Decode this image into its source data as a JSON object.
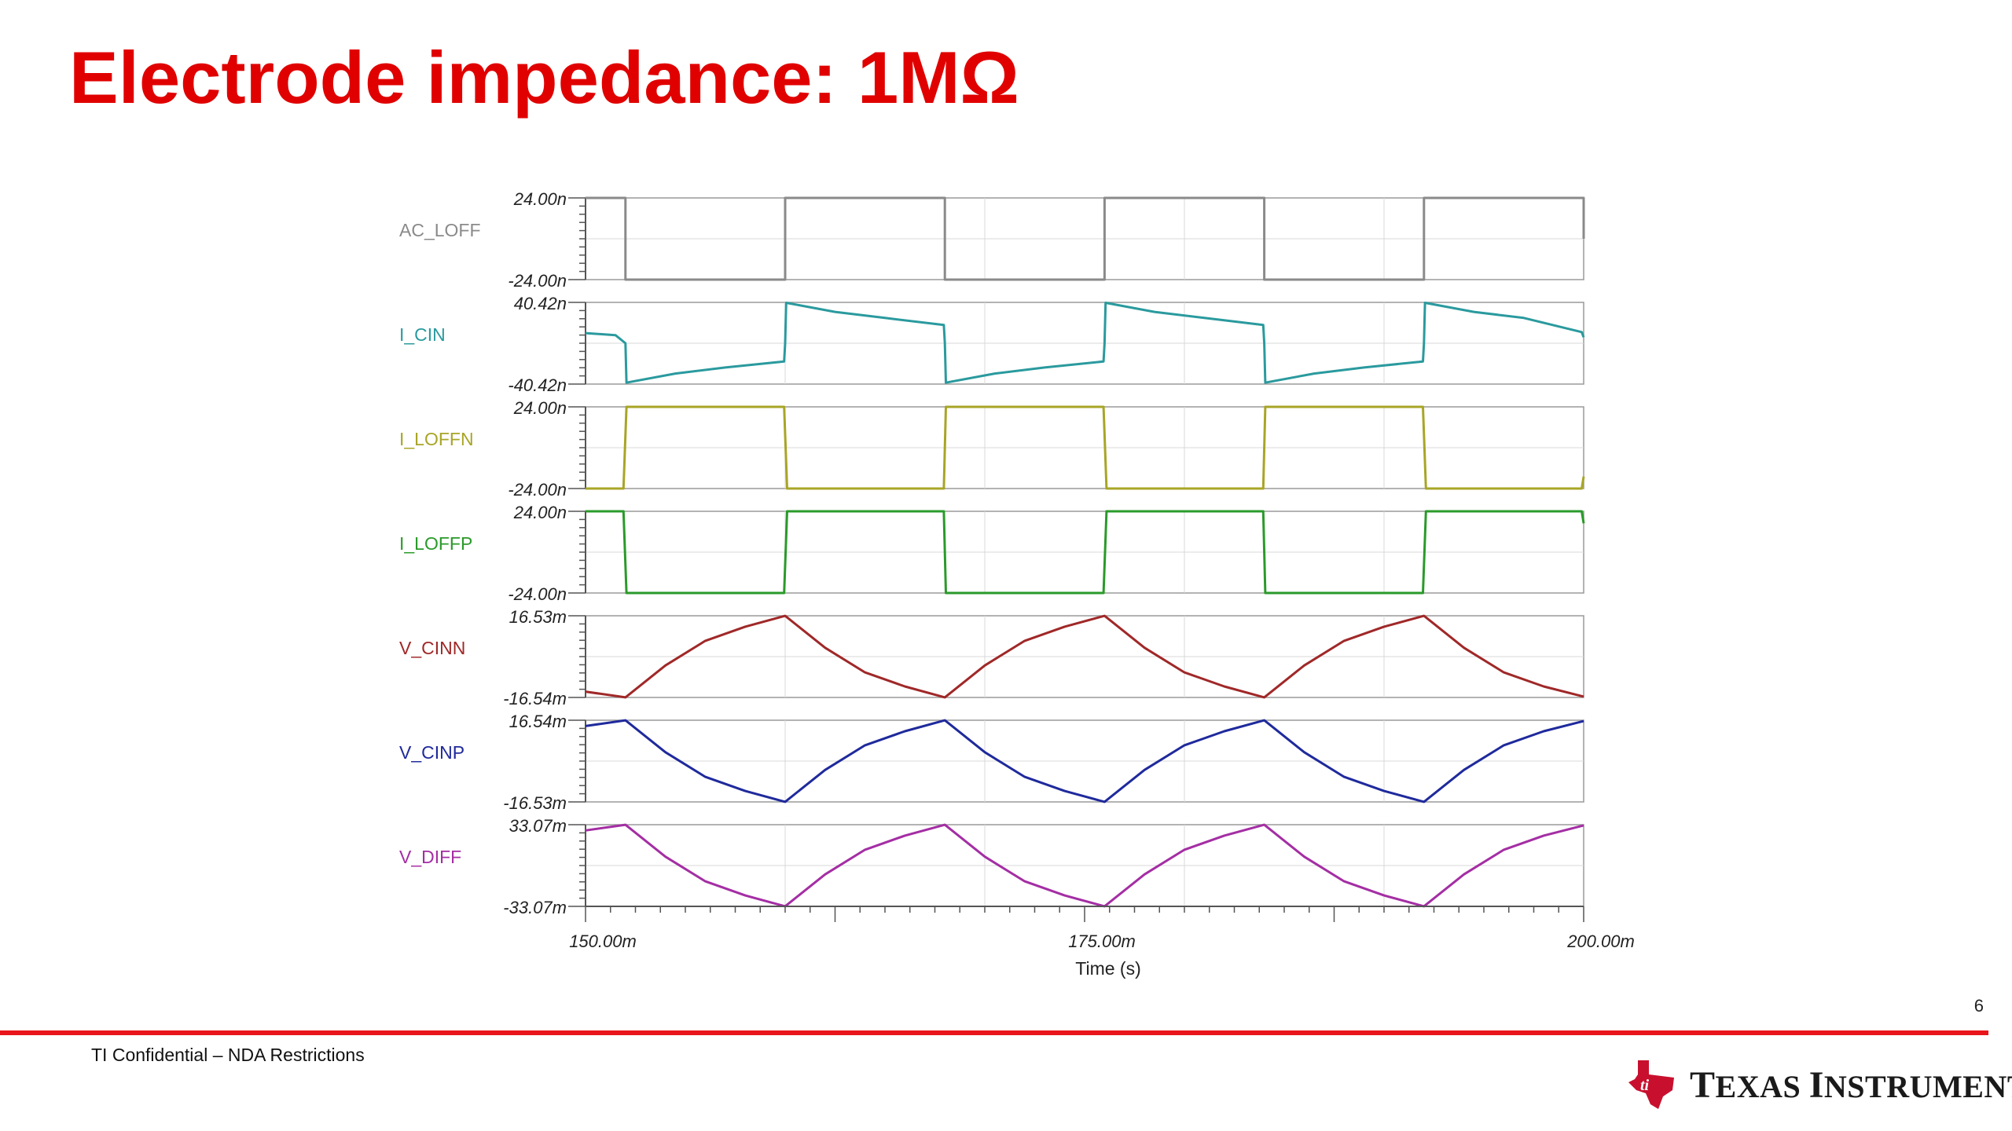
{
  "slide": {
    "title": "Electrode impedance: 1MΩ",
    "page_number": "6",
    "confidential": "TI Confidential – NDA Restrictions",
    "logo_text": "Texas Instruments"
  },
  "colors": {
    "title": "#e00000",
    "footer_rule": "#e8161b",
    "logo_red": "#c8102e",
    "plot_border": "#9a9a9a",
    "grid": "#d8d8d8"
  },
  "chart_data": {
    "type": "line",
    "title": "",
    "xlabel": "Time (s)",
    "xlim": [
      0.15,
      0.2
    ],
    "xtick_labels": [
      "150.00m",
      "175.00m",
      "200.00m"
    ],
    "xtick_values": [
      0.15,
      0.175,
      0.2
    ],
    "grid": true,
    "legend": "left of each trace",
    "series": [
      {
        "name": "AC_LOFF",
        "color": "#8a8a8a",
        "ylim": [
          -2.4e-08,
          2.4e-08
        ],
        "ytick_labels": [
          "24.00n",
          "-24.00n"
        ],
        "x": [
          0.15,
          0.152,
          0.152,
          0.16,
          0.16,
          0.168,
          0.168,
          0.176,
          0.176,
          0.184,
          0.184,
          0.192,
          0.192,
          0.2,
          0.2
        ],
        "y": [
          2.4e-08,
          2.4e-08,
          -2.4e-08,
          -2.4e-08,
          2.4e-08,
          2.4e-08,
          -2.4e-08,
          -2.4e-08,
          2.4e-08,
          2.4e-08,
          -2.4e-08,
          -2.4e-08,
          2.4e-08,
          2.4e-08,
          0
        ]
      },
      {
        "name": "I_CIN",
        "color": "#2a9a9e",
        "ylim": [
          -4.042e-08,
          4.042e-08
        ],
        "ytick_labels": [
          "40.42n",
          "-40.42n"
        ],
        "x": [
          0.15,
          0.1515,
          0.152,
          0.15205,
          0.1545,
          0.157,
          0.15995,
          0.16,
          0.16005,
          0.1625,
          0.165,
          0.16795,
          0.168,
          0.16805,
          0.1705,
          0.173,
          0.17595,
          0.176,
          0.17605,
          0.1785,
          0.181,
          0.18395,
          0.184,
          0.18405,
          0.1865,
          0.189,
          0.19195,
          0.192,
          0.19205,
          0.1945,
          0.197,
          0.1999,
          0.2
        ],
        "y": [
          1e-08,
          8e-09,
          0,
          -3.9e-08,
          -3e-08,
          -2.4e-08,
          -1.8e-08,
          0,
          4e-08,
          3.1e-08,
          2.5e-08,
          1.8e-08,
          0,
          -3.9e-08,
          -3e-08,
          -2.4e-08,
          -1.8e-08,
          0,
          4e-08,
          3.1e-08,
          2.5e-08,
          1.8e-08,
          0,
          -3.9e-08,
          -3e-08,
          -2.4e-08,
          -1.8e-08,
          0,
          4e-08,
          3.1e-08,
          2.5e-08,
          1.1e-08,
          6e-09
        ]
      },
      {
        "name": "I_LOFFN",
        "color": "#a8a526",
        "ylim": [
          -2.4e-08,
          2.4e-08
        ],
        "ytick_labels": [
          "24.00n",
          "-24.00n"
        ],
        "x": [
          0.15,
          0.1519,
          0.15205,
          0.15995,
          0.1601,
          0.16795,
          0.16805,
          0.17595,
          0.1761,
          0.18395,
          0.18405,
          0.19195,
          0.1921,
          0.1999,
          0.2
        ],
        "y": [
          -2.4e-08,
          -2.4e-08,
          2.4e-08,
          2.4e-08,
          -2.4e-08,
          -2.4e-08,
          2.4e-08,
          2.4e-08,
          -2.4e-08,
          -2.4e-08,
          2.4e-08,
          2.4e-08,
          -2.4e-08,
          -2.4e-08,
          -1.7e-08
        ]
      },
      {
        "name": "I_LOFFP",
        "color": "#2a9a2a",
        "ylim": [
          -2.4e-08,
          2.4e-08
        ],
        "ytick_labels": [
          "24.00n",
          "-24.00n"
        ],
        "x": [
          0.15,
          0.1519,
          0.15205,
          0.15995,
          0.1601,
          0.16795,
          0.16805,
          0.17595,
          0.1761,
          0.18395,
          0.18405,
          0.19195,
          0.1921,
          0.1999,
          0.2
        ],
        "y": [
          2.4e-08,
          2.4e-08,
          -2.4e-08,
          -2.4e-08,
          2.4e-08,
          2.4e-08,
          -2.4e-08,
          -2.4e-08,
          2.4e-08,
          2.4e-08,
          -2.4e-08,
          -2.4e-08,
          2.4e-08,
          2.4e-08,
          1.7e-08
        ]
      },
      {
        "name": "V_CINN",
        "color": "#a02828",
        "ylim": [
          -0.01654,
          0.01653
        ],
        "ytick_labels": [
          "16.53m",
          "-16.54m"
        ],
        "x": [
          0.15,
          0.152,
          0.154,
          0.156,
          0.158,
          0.16,
          0.162,
          0.164,
          0.166,
          0.168,
          0.17,
          0.172,
          0.174,
          0.176,
          0.178,
          0.18,
          0.182,
          0.184,
          0.186,
          0.188,
          0.19,
          0.192,
          0.194,
          0.196,
          0.198,
          0.2
        ],
        "y": [
          -0.0142,
          -0.0165,
          -0.0036,
          0.0064,
          0.0121,
          0.0165,
          0.0036,
          -0.0064,
          -0.0121,
          -0.0165,
          -0.0036,
          0.0064,
          0.0121,
          0.0165,
          0.0036,
          -0.0064,
          -0.0121,
          -0.0165,
          -0.0036,
          0.0064,
          0.0121,
          0.0165,
          0.0036,
          -0.0064,
          -0.0121,
          -0.0162
        ]
      },
      {
        "name": "V_CINP",
        "color": "#1f2a9c",
        "ylim": [
          -0.01653,
          0.01654
        ],
        "ytick_labels": [
          "16.54m",
          "-16.53m"
        ],
        "x": [
          0.15,
          0.152,
          0.154,
          0.156,
          0.158,
          0.16,
          0.162,
          0.164,
          0.166,
          0.168,
          0.17,
          0.172,
          0.174,
          0.176,
          0.178,
          0.18,
          0.182,
          0.184,
          0.186,
          0.188,
          0.19,
          0.192,
          0.194,
          0.196,
          0.198,
          0.2
        ],
        "y": [
          0.0142,
          0.0165,
          0.0036,
          -0.0064,
          -0.0121,
          -0.0165,
          -0.0036,
          0.0064,
          0.0121,
          0.0165,
          0.0036,
          -0.0064,
          -0.0121,
          -0.0165,
          -0.0036,
          0.0064,
          0.0121,
          0.0165,
          0.0036,
          -0.0064,
          -0.0121,
          -0.0165,
          -0.0036,
          0.0064,
          0.0121,
          0.0162
        ]
      },
      {
        "name": "V_DIFF",
        "color": "#a42ea4",
        "ylim": [
          -0.03307,
          0.03307
        ],
        "ytick_labels": [
          "33.07m",
          "-33.07m"
        ],
        "x": [
          0.15,
          0.152,
          0.154,
          0.156,
          0.158,
          0.16,
          0.162,
          0.164,
          0.166,
          0.168,
          0.17,
          0.172,
          0.174,
          0.176,
          0.178,
          0.18,
          0.182,
          0.184,
          0.186,
          0.188,
          0.19,
          0.192,
          0.194,
          0.196,
          0.198,
          0.2
        ],
        "y": [
          0.0284,
          0.033,
          0.0072,
          -0.0128,
          -0.0242,
          -0.033,
          -0.0072,
          0.0128,
          0.0242,
          0.033,
          0.0072,
          -0.0128,
          -0.0242,
          -0.033,
          -0.0072,
          0.0128,
          0.0242,
          0.033,
          0.0072,
          -0.0128,
          -0.0242,
          -0.033,
          -0.0072,
          0.0128,
          0.0242,
          0.0325
        ]
      }
    ]
  }
}
